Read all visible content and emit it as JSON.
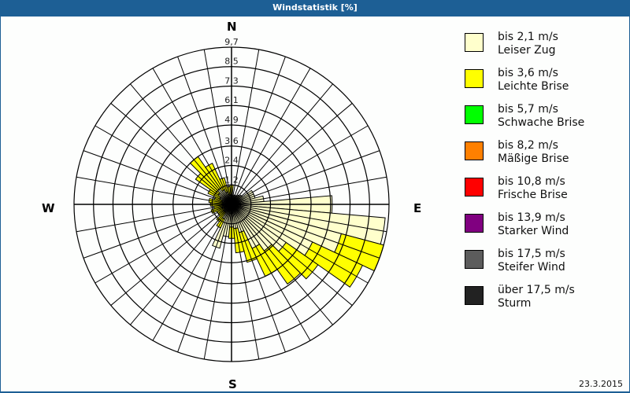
{
  "window": {
    "title": "Windstatistik [%]",
    "date": "23.3.2015"
  },
  "compass": {
    "n": "N",
    "e": "E",
    "s": "S",
    "w": "W"
  },
  "legend": [
    {
      "range": "bis 2,1 m/s",
      "label": "Leiser Zug",
      "color": "#ffffcc"
    },
    {
      "range": "bis 3,6 m/s",
      "label": "Leichte Brise",
      "color": "#ffff00"
    },
    {
      "range": "bis 5,7 m/s",
      "label": "Schwache Brise",
      "color": "#00ff00"
    },
    {
      "range": "bis 8,2 m/s",
      "label": "Mäßige Brise",
      "color": "#ff8000"
    },
    {
      "range": "bis 10,8 m/s",
      "label": "Frische Brise",
      "color": "#ff0000"
    },
    {
      "range": "bis 13,9 m/s",
      "label": "Starker Wind",
      "color": "#800080"
    },
    {
      "range": "bis 17,5 m/s",
      "label": "Steifer Wind",
      "color": "#5c5c5c"
    },
    {
      "range": "über 17,5 m/s",
      "label": "Sturm",
      "color": "#222222"
    }
  ],
  "chart_data": {
    "type": "wind-rose",
    "title": "Windstatistik [%]",
    "unit": "%",
    "ring_labels": [
      "1,2",
      "2,4",
      "3,6",
      "4,9",
      "6,1",
      "7,3",
      "8,5",
      "9,7"
    ],
    "ring_values": [
      1.2,
      2.4,
      3.6,
      4.9,
      6.1,
      7.3,
      8.5,
      9.7
    ],
    "rmax": 9.7,
    "direction_labels": [
      "N",
      "E",
      "S",
      "W"
    ],
    "sector_width_deg": 10,
    "series_names": [
      "bis 2,1 m/s",
      "bis 3,6 m/s"
    ],
    "sectors": [
      {
        "dir": 0,
        "values": [
          0.5,
          0.7
        ]
      },
      {
        "dir": 10,
        "values": [
          0.5,
          0.0
        ]
      },
      {
        "dir": 20,
        "values": [
          0.6,
          0.0
        ]
      },
      {
        "dir": 30,
        "values": [
          0.6,
          0.0
        ]
      },
      {
        "dir": 40,
        "values": [
          0.7,
          0.0
        ]
      },
      {
        "dir": 50,
        "values": [
          0.8,
          0.0
        ]
      },
      {
        "dir": 60,
        "values": [
          1.5,
          0.0
        ]
      },
      {
        "dir": 70,
        "values": [
          1.5,
          0.0
        ]
      },
      {
        "dir": 80,
        "values": [
          2.0,
          0.0
        ]
      },
      {
        "dir": 90,
        "values": [
          6.2,
          0.0
        ]
      },
      {
        "dir": 100,
        "values": [
          9.5,
          0.0
        ]
      },
      {
        "dir": 110,
        "values": [
          7.0,
          2.7
        ]
      },
      {
        "dir": 120,
        "values": [
          5.5,
          3.4
        ]
      },
      {
        "dir": 130,
        "values": [
          4.1,
          2.4
        ]
      },
      {
        "dir": 140,
        "values": [
          3.5,
          2.5
        ]
      },
      {
        "dir": 150,
        "values": [
          3.0,
          1.9
        ]
      },
      {
        "dir": 160,
        "values": [
          1.8,
          1.9
        ]
      },
      {
        "dir": 170,
        "values": [
          1.5,
          1.5
        ]
      },
      {
        "dir": 180,
        "values": [
          1.4,
          0.7
        ]
      },
      {
        "dir": 190,
        "values": [
          2.0,
          0.0
        ]
      },
      {
        "dir": 200,
        "values": [
          2.8,
          0.0
        ]
      },
      {
        "dir": 210,
        "values": [
          1.0,
          0.6
        ]
      },
      {
        "dir": 220,
        "values": [
          0.6,
          0.7
        ]
      },
      {
        "dir": 230,
        "values": [
          0.6,
          0.4
        ]
      },
      {
        "dir": 240,
        "values": [
          0.5,
          0.5
        ]
      },
      {
        "dir": 250,
        "values": [
          0.6,
          0.7
        ]
      },
      {
        "dir": 260,
        "values": [
          0.5,
          0.6
        ]
      },
      {
        "dir": 270,
        "values": [
          0.6,
          0.7
        ]
      },
      {
        "dir": 280,
        "values": [
          0.5,
          0.9
        ]
      },
      {
        "dir": 290,
        "values": [
          0.6,
          0.5
        ]
      },
      {
        "dir": 300,
        "values": [
          0.8,
          0.8
        ]
      },
      {
        "dir": 310,
        "values": [
          1.0,
          1.7
        ]
      },
      {
        "dir": 320,
        "values": [
          1.2,
          2.4
        ]
      },
      {
        "dir": 330,
        "values": [
          1.0,
          1.8
        ]
      },
      {
        "dir": 340,
        "values": [
          0.8,
          0.9
        ]
      },
      {
        "dir": 350,
        "values": [
          0.6,
          0.5
        ]
      }
    ]
  }
}
